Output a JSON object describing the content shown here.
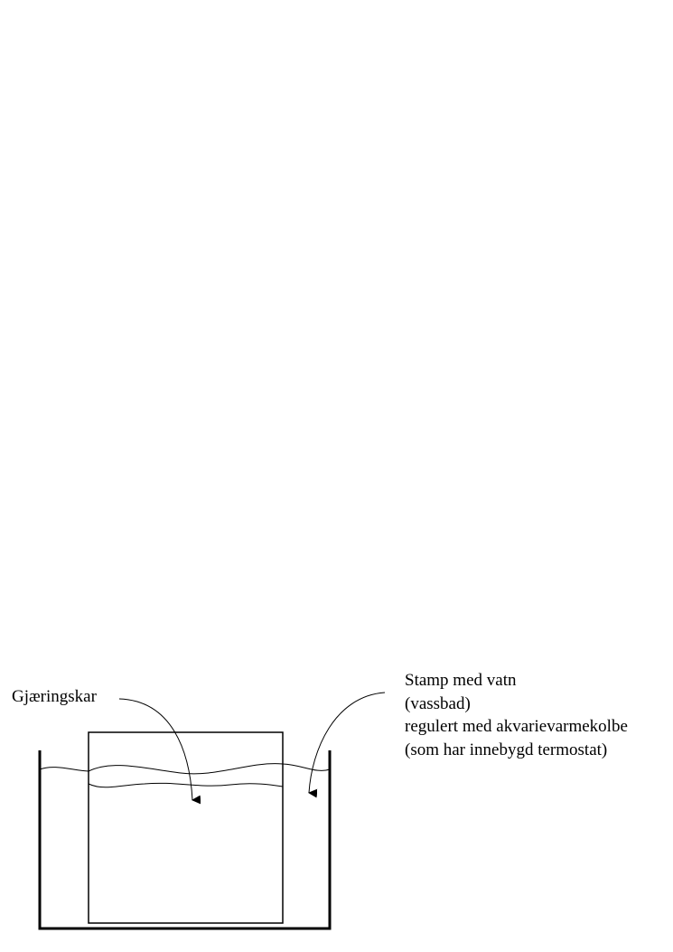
{
  "labels": {
    "fermenter": "Gjæringskar",
    "bath": [
      "Stamp med vatn",
      "(vassbad)",
      "regulert med akvarievarmekolbe",
      "(som har innebygd termostat)"
    ]
  },
  "colors": {
    "stroke": "#000000",
    "background": "#ffffff"
  }
}
